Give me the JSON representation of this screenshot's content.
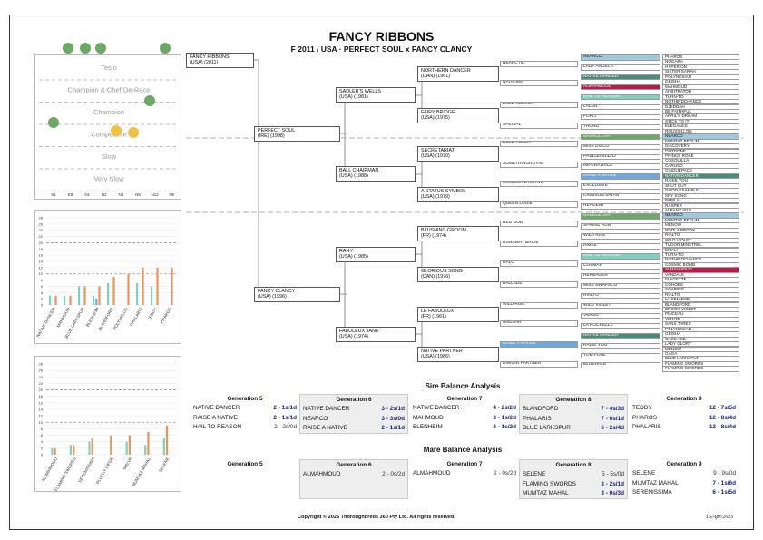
{
  "title": "FANCY RIBBONS",
  "subtitle": "F 2011 / USA · PERFECT SOUL x FANCY CLANCY",
  "subject": {
    "name": "FANCY RIBBONS",
    "info": "(USA) (2011)"
  },
  "gen1": [
    {
      "name": "PERFECT SOUL",
      "info": "(IRE) (1998)"
    },
    {
      "name": "FANCY CLANCY",
      "info": "(USA) (1996)"
    }
  ],
  "gen2": [
    {
      "name": "SADLER'S WELLS",
      "info": "(USA) (1981)"
    },
    {
      "name": "BALL CHAIRMAN",
      "info": "(USA) (1988)"
    },
    {
      "name": "RAHY",
      "info": "(USA) (1985)"
    },
    {
      "name": "FABULEUX JANE",
      "info": "(USA) (1974)"
    }
  ],
  "gen3": [
    {
      "name": "NORTHERN DANCER",
      "info": "(CAN) (1961)"
    },
    {
      "name": "FAIRY BRIDGE",
      "info": "(USA) (1975)"
    },
    {
      "name": "SECRETARIAT",
      "info": "(USA) (1970)"
    },
    {
      "name": "A STATUS SYMBOL",
      "info": "(USA) (1979)"
    },
    {
      "name": "BLUSHING GROOM",
      "info": "(FR) (1974)"
    },
    {
      "name": "GLORIOUS SONG",
      "info": "(CAN) (1976)"
    },
    {
      "name": "LE FABULEUX",
      "info": "(FR) (1961)"
    },
    {
      "name": "NATIVE PARTNER",
      "info": "(USA) (1966)"
    }
  ],
  "gen4": [
    "NEARCTIC",
    "NATALMA",
    "BOLD REASON",
    "SPECIAL",
    "BOLD RULER",
    "SOMETHINGROYAL",
    "EXCLUSIVE NATIVE",
    "QUEEN LOUIE",
    "RED GOD",
    "RUNAWAY BRIDE",
    "HALO",
    "BALLADE",
    "WILD RISK",
    "ANGUAR",
    "RAISE A NATIVE",
    "DINNER PARTNER"
  ],
  "gen5": [
    "NEARCO",
    "LADY ANGELA",
    "NATIVE DANCER",
    "ALMAHMOUD",
    "HAIL TO REASON",
    "LALUN",
    "FORLI",
    "THONG",
    "NASRULLAH",
    "MISS DISCO",
    "PRINCEQUILLO",
    "IMPERATRICE",
    "RAISE A NATIVE",
    "EXCLUSIVE",
    "CRIMSON SATAN",
    "REAGENT",
    "NASRULLAH",
    "SPRING RUN",
    "WILD RISK",
    "AIMEE",
    "HAIL TO REASON",
    "COSMAH",
    "HERBAGER",
    "MISS SWAPSCO",
    "RIALTO",
    "WILD VIOLET",
    "VERSO",
    "LA ROCHELLE",
    "NATIVE DANCER",
    "RAISE YOU",
    "TOM FOOL",
    "BLUEHAZE"
  ],
  "gen6": [
    "PHAROS",
    "NOGARA",
    "HYPERION",
    "SISTER SARAH",
    "POLYNESIAN",
    "GEISHA",
    "MAHMOUD",
    "ARBITRATOR",
    "TURN-TO",
    "NOTHIRDCHANCE",
    "DJEDDAH",
    "BE FAITHFUL",
    "APRIL'S DREAM",
    "STICK TO IT",
    "ELEGANCE",
    "ROUSSILLON",
    "NEARCO",
    "MUMTAZ BEGUM",
    "DISCOVERY",
    "OUTDONE",
    "PRINCE ROSE",
    "COSQUILLA",
    "CARUSO",
    "CINQUEPACE",
    "NATIVE DANCER",
    "RAISE YOU",
    "SHUT OUT",
    "GOOD EXAMPLE",
    "SPY SONG",
    "PAPILA",
    "RASPER",
    "ALBANY ISLE",
    "NEARCO",
    "MUMTAZ BEGUM",
    "MENOW",
    "BOOLA BROOK",
    "RIALTO",
    "WILD VIOLET",
    "TUDOR MINSTREL",
    "EMALI",
    "TURN-TO",
    "NOTHIRDCHANCE",
    "COSMIC BOMB",
    "ALMAHMOUD",
    "VANDALE",
    "FLAGETTE",
    "COHOES",
    "SOARING",
    "RIALTO",
    "LA SELLESE",
    "BLANDFORD",
    "BROOK VIOLET",
    "PINCEAU",
    "VERITE",
    "SANS TARES",
    "POLYNESIAN",
    "GEISHA",
    "CASE ACE",
    "LADY GLORY",
    "MENOW",
    "GAGA",
    "BLUE LARKSPUR",
    "FLAMING SWORDS",
    "FLAMING SWORDS"
  ],
  "pedigree_highlights": {
    "nearco": "#9ecae1",
    "native_dancer": "#4a8c79",
    "almahmoud": "#b71c4a",
    "hail_to_reason": "#7fcfbf",
    "nasrullah": "#6aaa64",
    "raise_a_native": "#6fa8dc"
  },
  "dosage": {
    "categories": [
      "Tesio",
      "Champion & Chef De-Race",
      "Champion",
      "Competitive",
      "Slow",
      "Very Slow"
    ],
    "xlabels": [
      "S1",
      "E8",
      "N1",
      "N2",
      "N3",
      "N5",
      "N12",
      "N9"
    ]
  },
  "sire_chart": {
    "labels": [
      "NATIVE DANCER",
      "MAHMOUD",
      "BLUE LARKSPUR",
      "BLENHEIM",
      "BLANDFORD",
      "POLYMELUS",
      "PHALARIS",
      "TEDDY",
      "PHAROS"
    ],
    "yticks": [
      "0",
      "2",
      "4",
      "6",
      "8",
      "10",
      "12",
      "14",
      "16",
      "18",
      "20",
      "22",
      "24",
      "26",
      "28"
    ],
    "s1": [
      3,
      3,
      6,
      3,
      7,
      0,
      7,
      6,
      0
    ],
    "s2": [
      3,
      3,
      6,
      6,
      9,
      10,
      12,
      12,
      12
    ],
    "s3": [
      0,
      0,
      0,
      2,
      0,
      0,
      0,
      0,
      0
    ]
  },
  "mare_chart": {
    "labels": [
      "ALMAHMOUD",
      "FLAMING SWORDS",
      "SERENISSIMA",
      "PLUCKY LIEGE",
      "MALVA",
      "MUMTAZ MAHAL",
      "SELENE"
    ],
    "yticks": [
      "0",
      "2",
      "4",
      "6",
      "8",
      "10",
      "12",
      "14",
      "16",
      "18",
      "20",
      "22",
      "24",
      "26",
      "28"
    ],
    "s1": [
      2,
      3,
      4,
      0,
      4,
      3,
      5
    ],
    "s2": [
      2,
      3,
      5,
      6,
      6,
      7,
      9
    ]
  },
  "sire_balance": {
    "title": "Sire Balance Analysis",
    "generations": [
      {
        "label": "Generation 5",
        "rows": [
          [
            "NATIVE DANCER",
            "2 - 1s/1d"
          ],
          [
            "RAISE A NATIVE",
            "2 - 1s/1d"
          ],
          [
            "HAIL TO REASON",
            "2 - 2s/0d"
          ]
        ]
      },
      {
        "label": "Generation 6",
        "rows": [
          [
            "NATIVE DANCER",
            "3 - 2s/1d"
          ],
          [
            "NEARCO",
            "3 - 3s/0d"
          ],
          [
            "RAISE A NATIVE",
            "2 - 1s/1d"
          ]
        ]
      },
      {
        "label": "Generation 7",
        "rows": [
          [
            "NATIVE DANCER",
            "4 - 2s/2d"
          ],
          [
            "MAHMOUD",
            "3 - 1s/2d"
          ],
          [
            "BLENHEIM",
            "3 - 1s/2d"
          ]
        ]
      },
      {
        "label": "Generation 8",
        "rows": [
          [
            "BLANDFORD",
            "7 - 4s/3d"
          ],
          [
            "PHALARIS",
            "7 - 6s/1d"
          ],
          [
            "BLUE LARKSPUR",
            "6 - 2s/4d"
          ]
        ]
      },
      {
        "label": "Generation 9",
        "rows": [
          [
            "TEDDY",
            "12 - 7s/5d"
          ],
          [
            "PHAROS",
            "12 - 8s/4d"
          ],
          [
            "PHALARIS",
            "12 - 8s/4d"
          ]
        ]
      }
    ]
  },
  "mare_balance": {
    "title": "Mare Balance Analysis",
    "generations": [
      {
        "label": "Generation 5",
        "rows": []
      },
      {
        "label": "Generation 6",
        "rows": [
          [
            "ALMAHMOUD",
            "2 - 0s/2d"
          ]
        ]
      },
      {
        "label": "Generation 7",
        "rows": [
          [
            "ALMAHMOUD",
            "2 - 0s/2d"
          ]
        ]
      },
      {
        "label": "Generation 8",
        "rows": [
          [
            "SELENE",
            "5 - 5s/0d"
          ],
          [
            "FLAMING SWORDS",
            "3 - 2s/1d"
          ],
          [
            "MUMTAZ MAHAL",
            "3 - 0s/3d"
          ]
        ]
      },
      {
        "label": "Generation 9",
        "rows": [
          [
            "SELENE",
            "9 - 9s/0d"
          ],
          [
            "MUMTAZ MAHAL",
            "7 - 1s/6d"
          ],
          [
            "SERENISSIMA",
            "6 - 1s/5d"
          ]
        ]
      }
    ]
  },
  "footer": {
    "copyright": "Copyright © 2025 Thoroughbreds 360 Pty Ltd. All rights reserved.",
    "date": "15/Apr/2025"
  }
}
